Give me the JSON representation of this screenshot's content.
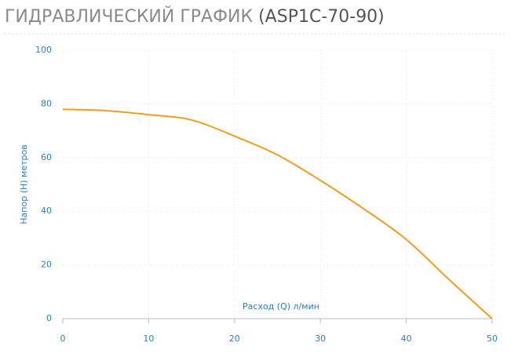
{
  "chart_data": {
    "type": "line",
    "title": "ГИДРАВЛИЧЕСКИЙ ГРАФИК",
    "subtitle": "(ASP1C-70-90)",
    "x_label": "Расход (Q) л/мин",
    "y_label": "Напор (H) метров",
    "x": [
      0,
      5,
      10,
      15,
      20,
      25,
      30,
      35,
      40,
      45,
      50
    ],
    "series": [
      {
        "name": "ASP1C-70-90",
        "color": "#f39c1f",
        "values": [
          78,
          77.5,
          76,
          74,
          68,
          61,
          51.5,
          41,
          29.5,
          14.5,
          0
        ]
      }
    ],
    "xlim": [
      0,
      50
    ],
    "xticks": [
      0,
      10,
      20,
      30,
      40,
      50
    ],
    "ylim": [
      0,
      100
    ],
    "yticks": [
      0,
      20,
      40,
      60,
      80,
      100
    ],
    "grid": true
  }
}
